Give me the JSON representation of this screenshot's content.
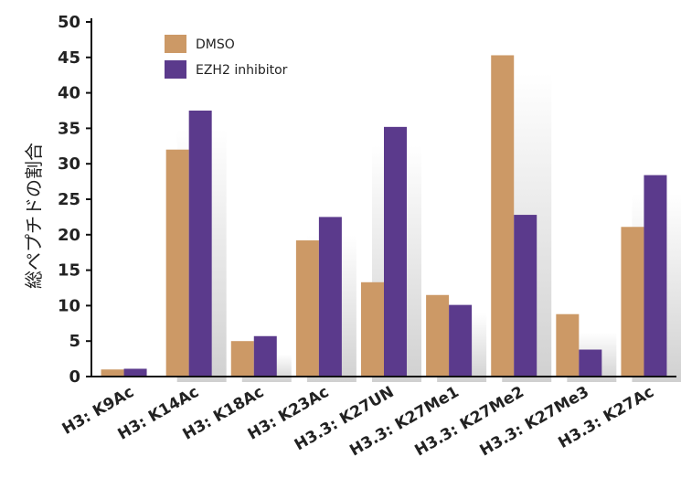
{
  "chart_data": {
    "type": "bar",
    "title": "",
    "xlabel": "",
    "ylabel": "総ペプチドの割合",
    "ylim": [
      0,
      50
    ],
    "yticks": [
      0,
      5,
      10,
      15,
      20,
      25,
      30,
      35,
      40,
      45,
      50
    ],
    "categories": [
      "H3: K9Ac",
      "H3: K14Ac",
      "H3: K18Ac",
      "H3: K23Ac",
      "H3.3: K27UN",
      "H3.3: K27Me1",
      "H3.3: K27Me2",
      "H3.3: K27Me3",
      "H3.3: K27Ac"
    ],
    "series": [
      {
        "name": "DMSO",
        "color": "#cc9966",
        "values": [
          1.0,
          32.0,
          5.0,
          19.2,
          13.3,
          11.5,
          45.3,
          8.8,
          21.1
        ]
      },
      {
        "name": "EZH2 inhibitor",
        "color": "#5b3a8c",
        "values": [
          1.1,
          37.5,
          5.7,
          22.5,
          35.2,
          10.1,
          22.8,
          3.8,
          28.4
        ]
      }
    ],
    "grid": false,
    "legend_position": "top-left"
  }
}
